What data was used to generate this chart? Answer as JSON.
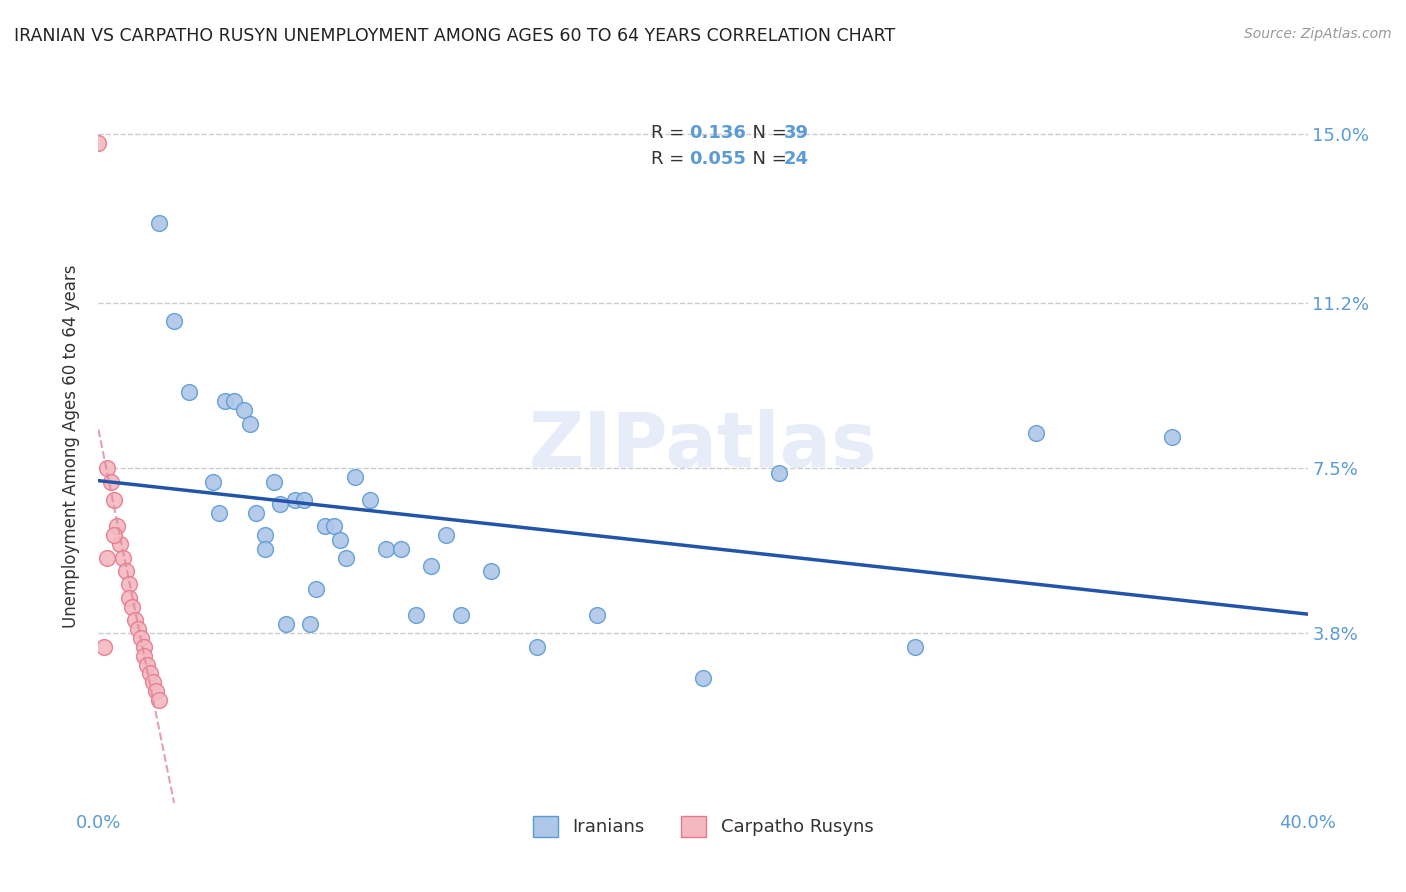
{
  "title": "IRANIAN VS CARPATHO RUSYN UNEMPLOYMENT AMONG AGES 60 TO 64 YEARS CORRELATION CHART",
  "source": "Source: ZipAtlas.com",
  "ylabel": "Unemployment Among Ages 60 to 64 years",
  "xlim": [
    0.0,
    0.4
  ],
  "ylim": [
    0.0,
    0.16
  ],
  "xticks": [
    0.0,
    0.05,
    0.1,
    0.15,
    0.2,
    0.25,
    0.3,
    0.35,
    0.4
  ],
  "xticklabels": [
    "0.0%",
    "",
    "",
    "",
    "",
    "",
    "",
    "",
    "40.0%"
  ],
  "ytick_positions": [
    0.038,
    0.075,
    0.112,
    0.15
  ],
  "ytick_labels": [
    "3.8%",
    "7.5%",
    "11.2%",
    "15.0%"
  ],
  "grid_color": "#cccccc",
  "background_color": "#ffffff",
  "iranians_color": "#aec6e8",
  "iranians_edge_color": "#5b9bd5",
  "carpatho_color": "#f4b8c1",
  "carpatho_edge_color": "#e8788a",
  "trend_iranians_color": "#2255aa",
  "trend_carpatho_color": "#dd8899",
  "iranians_x": [
    0.02,
    0.025,
    0.03,
    0.038,
    0.04,
    0.042,
    0.045,
    0.048,
    0.05,
    0.052,
    0.055,
    0.055,
    0.058,
    0.06,
    0.062,
    0.065,
    0.068,
    0.07,
    0.072,
    0.075,
    0.078,
    0.08,
    0.082,
    0.085,
    0.09,
    0.095,
    0.1,
    0.105,
    0.11,
    0.115,
    0.12,
    0.13,
    0.145,
    0.165,
    0.2,
    0.225,
    0.27,
    0.31,
    0.355
  ],
  "iranians_y": [
    0.13,
    0.108,
    0.092,
    0.072,
    0.065,
    0.09,
    0.09,
    0.088,
    0.085,
    0.065,
    0.06,
    0.057,
    0.072,
    0.067,
    0.04,
    0.068,
    0.068,
    0.04,
    0.048,
    0.062,
    0.062,
    0.059,
    0.055,
    0.073,
    0.068,
    0.057,
    0.057,
    0.042,
    0.053,
    0.06,
    0.042,
    0.052,
    0.035,
    0.042,
    0.028,
    0.074,
    0.035,
    0.083,
    0.082
  ],
  "carpatho_x": [
    0.003,
    0.004,
    0.005,
    0.006,
    0.007,
    0.008,
    0.009,
    0.01,
    0.01,
    0.011,
    0.012,
    0.013,
    0.014,
    0.015,
    0.015,
    0.016,
    0.017,
    0.018,
    0.019,
    0.02,
    0.0,
    0.002,
    0.003,
    0.005
  ],
  "carpatho_y": [
    0.075,
    0.072,
    0.068,
    0.062,
    0.058,
    0.055,
    0.052,
    0.049,
    0.046,
    0.044,
    0.041,
    0.039,
    0.037,
    0.035,
    0.033,
    0.031,
    0.029,
    0.027,
    0.025,
    0.023,
    0.148,
    0.035,
    0.055,
    0.06
  ],
  "watermark": "ZIPatlas",
  "marker_size": 130
}
